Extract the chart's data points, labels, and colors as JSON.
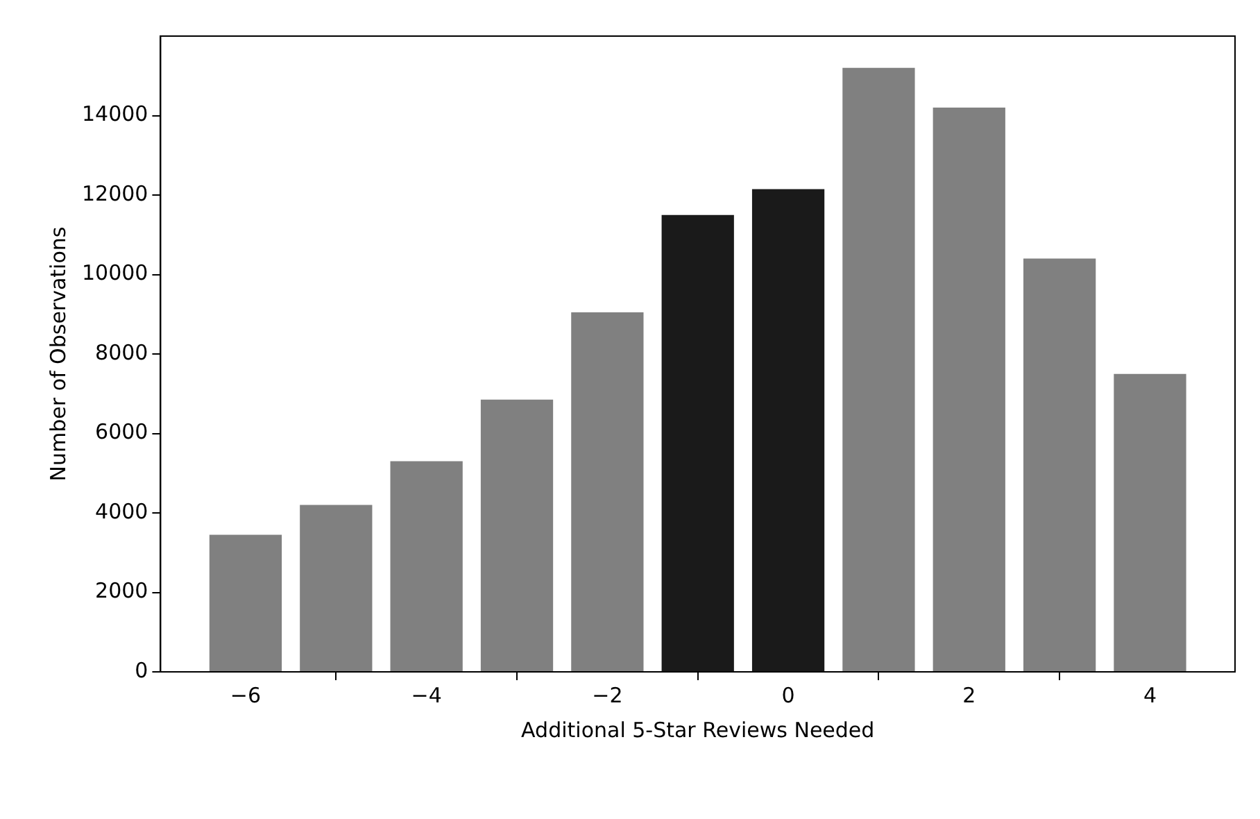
{
  "chart_data": {
    "type": "bar",
    "xlabel": "Additional 5-Star Reviews Needed",
    "ylabel": "Number of Observations",
    "x": [
      -6,
      -5,
      -4,
      -3,
      -2,
      -1,
      0,
      1,
      2,
      3,
      4
    ],
    "values": [
      3450,
      4200,
      5300,
      6850,
      9050,
      11500,
      12150,
      15200,
      14200,
      10400,
      7500
    ],
    "colors": [
      "#808080",
      "#808080",
      "#808080",
      "#808080",
      "#808080",
      "#1a1a1a",
      "#1a1a1a",
      "#808080",
      "#808080",
      "#808080",
      "#808080"
    ],
    "xlim": [
      -6.94,
      4.94
    ],
    "xticks": [
      {
        "value": -6,
        "label": "−6"
      },
      {
        "value": -4,
        "label": "−4"
      },
      {
        "value": -2,
        "label": "−2"
      },
      0,
      2,
      4
    ],
    "ylim": [
      0,
      16000
    ],
    "yticks": [
      0,
      2000,
      4000,
      6000,
      8000,
      10000,
      12000,
      14000
    ],
    "grid": false,
    "legend": false
  }
}
